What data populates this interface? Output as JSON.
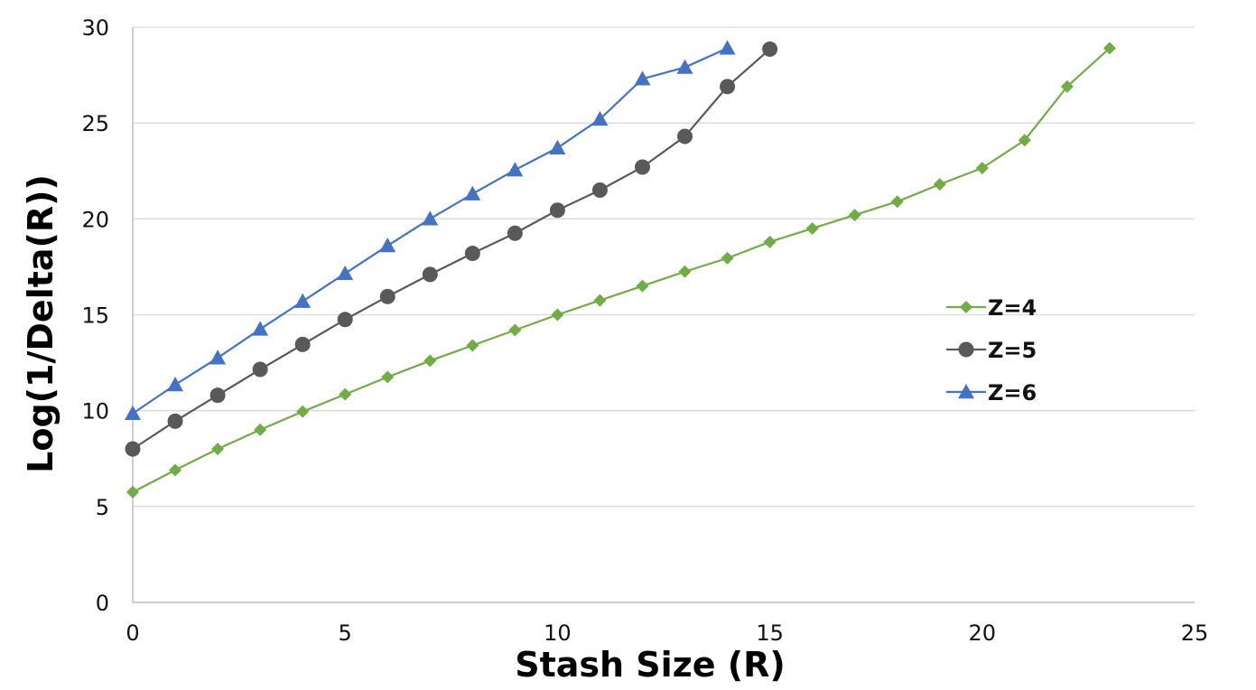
{
  "chart_data": {
    "type": "line",
    "title": "",
    "xlabel": "Stash Size (R)",
    "ylabel": "Log(1/Delta(R))",
    "xlim": [
      0,
      25
    ],
    "ylim": [
      0,
      30
    ],
    "x_ticks": [
      "0",
      "5",
      "10",
      "15",
      "20",
      "25"
    ],
    "y_ticks": [
      "0",
      "5",
      "10",
      "15",
      "20",
      "25",
      "30"
    ],
    "grid": "horizontal",
    "legend_position": "right",
    "series": [
      {
        "name": "Z=4",
        "color": "#70ad47",
        "marker": "diamond",
        "x": [
          0,
          1,
          2,
          3,
          4,
          5,
          6,
          7,
          8,
          9,
          10,
          11,
          12,
          13,
          14,
          15,
          16,
          17,
          18,
          19,
          20,
          21,
          22,
          23
        ],
        "y": [
          5.75,
          6.9,
          8.0,
          9.0,
          9.95,
          10.85,
          11.75,
          12.6,
          13.4,
          14.2,
          15.0,
          15.75,
          16.5,
          17.25,
          17.95,
          18.8,
          19.5,
          20.2,
          20.9,
          21.8,
          22.65,
          24.1,
          26.9,
          28.9
        ]
      },
      {
        "name": "Z=5",
        "color": "#595959",
        "marker": "circle",
        "x": [
          0,
          1,
          2,
          3,
          4,
          5,
          6,
          7,
          8,
          9,
          10,
          11,
          12,
          13,
          14,
          15
        ],
        "y": [
          8.0,
          9.45,
          10.8,
          12.15,
          13.45,
          14.75,
          15.95,
          17.1,
          18.2,
          19.25,
          20.45,
          21.5,
          22.7,
          24.3,
          26.9,
          28.85
        ]
      },
      {
        "name": "Z=6",
        "color": "#4472c4",
        "marker": "triangle",
        "x": [
          0,
          1,
          2,
          3,
          4,
          5,
          6,
          7,
          8,
          9,
          10,
          11,
          12,
          13,
          14
        ],
        "y": [
          9.85,
          11.35,
          12.75,
          14.25,
          15.7,
          17.15,
          18.6,
          20.0,
          21.3,
          22.55,
          23.7,
          25.2,
          27.3,
          27.9,
          28.9
        ]
      }
    ]
  }
}
